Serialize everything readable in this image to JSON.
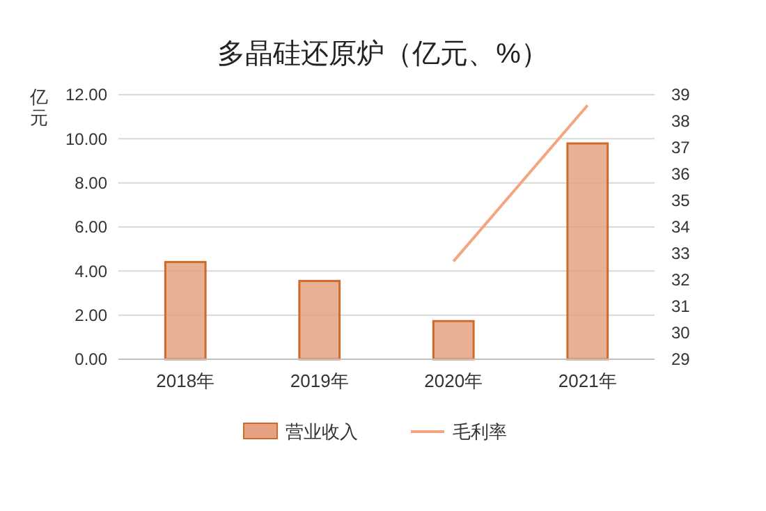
{
  "chart_data": {
    "type": "bar",
    "title": "多晶硅还原炉（亿元、%）",
    "ylabel": "亿元",
    "categories": [
      "2018年",
      "2019年",
      "2020年",
      "2021年"
    ],
    "series": [
      {
        "name": "营业收入",
        "color": "#e4a282",
        "values": [
          4.41,
          3.55,
          1.73,
          9.79
        ]
      },
      {
        "name": "毛利率",
        "type": "line",
        "axis": "y2",
        "color": "#f4a582",
        "values": [
          null,
          null,
          32.7,
          38.6
        ]
      }
    ],
    "ylim": [
      0,
      12
    ],
    "yticks": [
      {
        "value": 0,
        "label": "0.00"
      },
      {
        "value": 2,
        "label": "2.00"
      },
      {
        "value": 4,
        "label": "4.00"
      },
      {
        "value": 6,
        "label": "6.00"
      },
      {
        "value": 8,
        "label": "8.00"
      },
      {
        "value": 10,
        "label": "10.00"
      },
      {
        "value": 12,
        "label": "12.00"
      }
    ],
    "y2lim": [
      29,
      39
    ],
    "y2ticks": [
      29,
      30,
      31,
      32,
      33,
      34,
      35,
      36,
      37,
      38,
      39
    ],
    "grid": "y",
    "legend": "bottom",
    "marker": "none"
  }
}
